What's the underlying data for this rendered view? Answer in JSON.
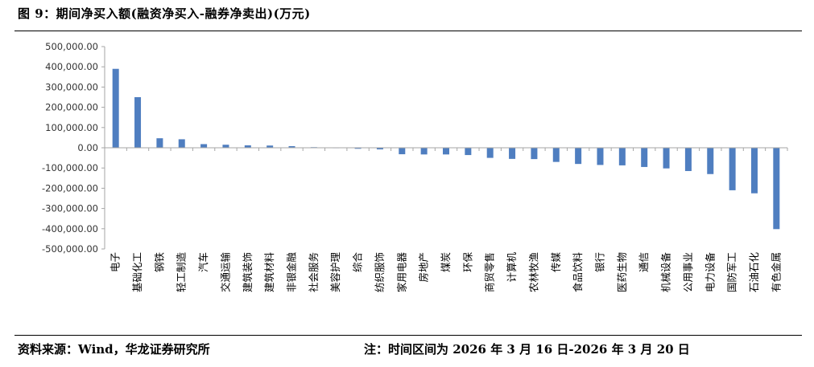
{
  "header": {
    "title": "图 9：期间净买入额(融资净买入-融券净卖出)(万元)"
  },
  "footer": {
    "source": "资料来源：Wind，华龙证券研究所",
    "note": "注：时间区间为 2026 年 3 月 16 日-2026 年 3 月 20 日"
  },
  "colors": {
    "bar": "#4F7EC0",
    "axis": "#A6A6A6",
    "rule": "#000000"
  },
  "chart_data": {
    "type": "bar",
    "title": "期间净买入额(融资净买入-融券净卖出)(万元)",
    "xlabel": "",
    "ylabel": "",
    "ylim": [
      -500000,
      500000
    ],
    "yticks": [
      500000,
      400000,
      300000,
      200000,
      100000,
      0,
      -100000,
      -200000,
      -300000,
      -400000,
      -500000
    ],
    "ytick_labels": [
      "500,000.00",
      "400,000.00",
      "300,000.00",
      "200,000.00",
      "100,000.00",
      "0.00",
      "-100,000.00",
      "-200,000.00",
      "-300,000.00",
      "-400,000.00",
      "-500,000.00"
    ],
    "grid": false,
    "categories": [
      "电子",
      "基础化工",
      "钢铁",
      "轻工制造",
      "汽车",
      "交通运输",
      "建筑装饰",
      "建筑材料",
      "非银金融",
      "社会服务",
      "美容护理",
      "综合",
      "纺织服饰",
      "家用电器",
      "房地产",
      "煤炭",
      "环保",
      "商贸零售",
      "计算机",
      "农林牧渔",
      "传媒",
      "食品饮料",
      "银行",
      "医药生物",
      "通信",
      "机械设备",
      "公用事业",
      "电力设备",
      "国防军工",
      "石油石化",
      "有色金属"
    ],
    "values": [
      390000,
      250000,
      47000,
      42000,
      18000,
      15000,
      12000,
      11000,
      8000,
      3000,
      1000,
      -5000,
      -8000,
      -32000,
      -33000,
      -33000,
      -36000,
      -50000,
      -55000,
      -56000,
      -70000,
      -80000,
      -85000,
      -87000,
      -95000,
      -102000,
      -115000,
      -130000,
      -210000,
      -225000,
      -402000
    ]
  }
}
